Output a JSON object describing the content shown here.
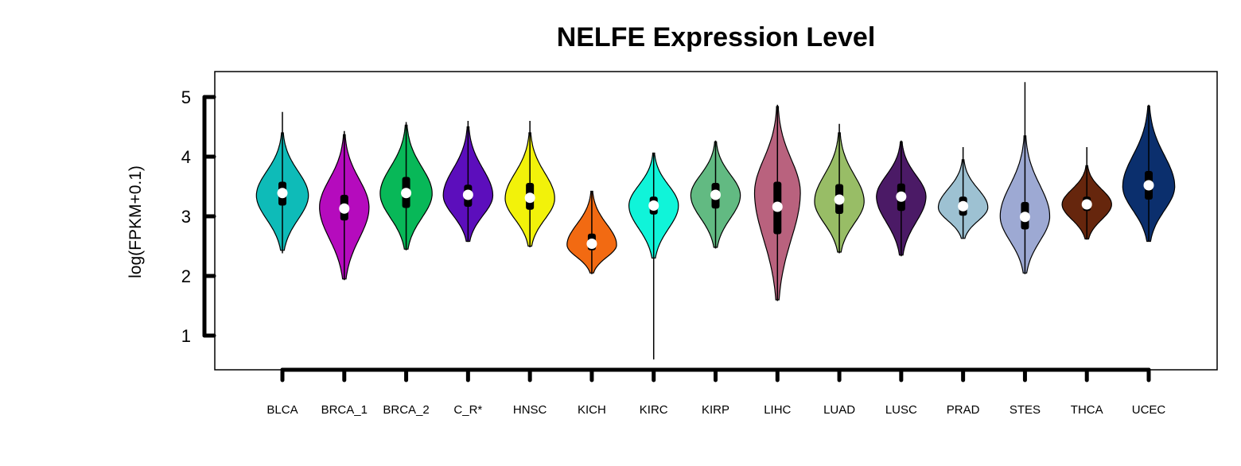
{
  "chart_data": {
    "type": "violin",
    "title": "NELFE Expression Level",
    "xlabel": "",
    "ylabel": "log(FPKM+0.1)",
    "ylim": [
      0.45,
      5.45
    ],
    "yticks": [
      1,
      2,
      3,
      4,
      5
    ],
    "grid": false,
    "legend": "none",
    "categories": [
      "BLCA",
      "BRCA_1",
      "BRCA_2",
      "C_R*",
      "HNSC",
      "KICH",
      "KIRC",
      "KIRP",
      "LIHC",
      "LUAD",
      "LUSC",
      "PRAD",
      "STES",
      "THCA",
      "UCEC"
    ],
    "colors": [
      "#0EBBB8",
      "#B50BBD",
      "#08B858",
      "#5C0EBC",
      "#F2F20A",
      "#F26A12",
      "#10F4D9",
      "#62BA82",
      "#B9627E",
      "#98BD66",
      "#4B1A66",
      "#9DC1D2",
      "#9DA9D3",
      "#66260D",
      "#0B2F6D"
    ],
    "series": [
      {
        "min": 2.38,
        "q1": 3.18,
        "median": 3.39,
        "q3": 3.58,
        "max": 4.75,
        "lo": 2.43,
        "hi": 4.4,
        "mode": 3.35,
        "width": 0.42
      },
      {
        "min": 1.93,
        "q1": 2.93,
        "median": 3.13,
        "q3": 3.36,
        "max": 4.43,
        "lo": 1.95,
        "hi": 4.37,
        "mode": 3.15,
        "width": 0.4
      },
      {
        "min": 2.43,
        "q1": 3.14,
        "median": 3.39,
        "q3": 3.66,
        "max": 4.58,
        "lo": 2.45,
        "hi": 4.53,
        "mode": 3.38,
        "width": 0.42
      },
      {
        "min": 2.57,
        "q1": 3.16,
        "median": 3.36,
        "q3": 3.53,
        "max": 4.6,
        "lo": 2.58,
        "hi": 4.5,
        "mode": 3.35,
        "width": 0.4
      },
      {
        "min": 2.48,
        "q1": 3.11,
        "median": 3.31,
        "q3": 3.56,
        "max": 4.6,
        "lo": 2.5,
        "hi": 4.4,
        "mode": 3.3,
        "width": 0.4
      },
      {
        "min": 2.03,
        "q1": 2.43,
        "median": 2.54,
        "q3": 2.71,
        "max": 3.42,
        "lo": 2.05,
        "hi": 3.42,
        "mode": 2.52,
        "width": 0.4
      },
      {
        "min": 0.6,
        "q1": 3.03,
        "median": 3.18,
        "q3": 3.33,
        "max": 4.06,
        "lo": 2.3,
        "hi": 4.06,
        "mode": 3.18,
        "width": 0.4
      },
      {
        "min": 2.46,
        "q1": 3.13,
        "median": 3.36,
        "q3": 3.56,
        "max": 4.27,
        "lo": 2.48,
        "hi": 4.25,
        "mode": 3.35,
        "width": 0.4
      },
      {
        "min": 1.58,
        "q1": 2.7,
        "median": 3.16,
        "q3": 3.58,
        "max": 4.87,
        "lo": 1.6,
        "hi": 4.84,
        "mode": 3.4,
        "width": 0.37
      },
      {
        "min": 2.38,
        "q1": 3.04,
        "median": 3.28,
        "q3": 3.54,
        "max": 4.55,
        "lo": 2.4,
        "hi": 4.4,
        "mode": 3.25,
        "width": 0.4
      },
      {
        "min": 2.33,
        "q1": 3.09,
        "median": 3.33,
        "q3": 3.55,
        "max": 4.27,
        "lo": 2.35,
        "hi": 4.25,
        "mode": 3.33,
        "width": 0.4
      },
      {
        "min": 2.63,
        "q1": 3.01,
        "median": 3.17,
        "q3": 3.33,
        "max": 4.16,
        "lo": 2.63,
        "hi": 3.95,
        "mode": 3.15,
        "width": 0.4
      },
      {
        "min": 2.03,
        "q1": 2.78,
        "median": 2.99,
        "q3": 3.24,
        "max": 5.25,
        "lo": 2.05,
        "hi": 4.35,
        "mode": 3.0,
        "width": 0.4
      },
      {
        "min": 2.61,
        "q1": 3.09,
        "median": 3.2,
        "q3": 3.33,
        "max": 4.16,
        "lo": 2.62,
        "hi": 3.85,
        "mode": 3.2,
        "width": 0.4
      },
      {
        "min": 2.58,
        "q1": 3.28,
        "median": 3.52,
        "q3": 3.76,
        "max": 4.87,
        "lo": 2.58,
        "hi": 4.85,
        "mode": 3.5,
        "width": 0.42
      }
    ]
  }
}
